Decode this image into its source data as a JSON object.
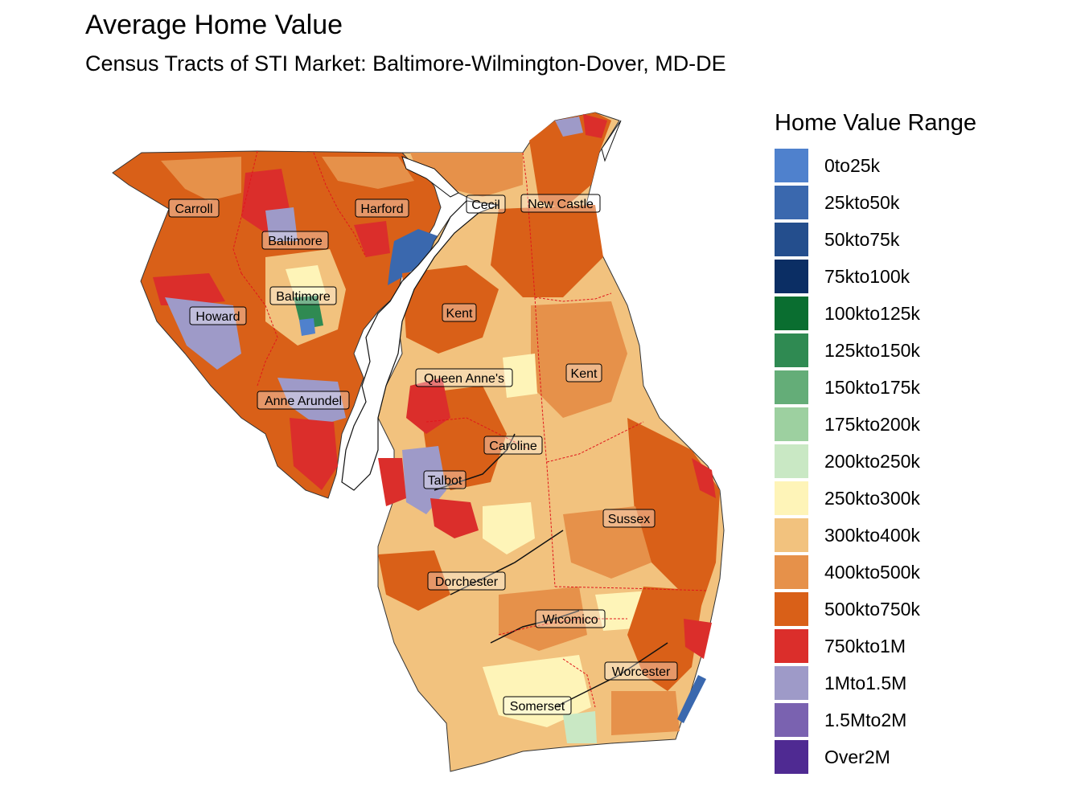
{
  "title": "Average Home Value",
  "subtitle": "Census Tracts of STI Market: Baltimore-Wilmington-Dover, MD-DE",
  "legend": {
    "title": "Home Value Range",
    "items": [
      {
        "label": "0to25k",
        "color": "#4f81cd"
      },
      {
        "label": "25kto50k",
        "color": "#3a68ae"
      },
      {
        "label": "50kto75k",
        "color": "#244e8d"
      },
      {
        "label": "75kto100k",
        "color": "#0b2e64"
      },
      {
        "label": "100kto125k",
        "color": "#0a6e30"
      },
      {
        "label": "125kto150k",
        "color": "#2f8a52"
      },
      {
        "label": "150kto175k",
        "color": "#64ad78"
      },
      {
        "label": "175kto200k",
        "color": "#9dd0a0"
      },
      {
        "label": "200kto250k",
        "color": "#c9e8c4"
      },
      {
        "label": "250kto300k",
        "color": "#fef4b8"
      },
      {
        "label": "300kto400k",
        "color": "#f2c27e"
      },
      {
        "label": "400kto500k",
        "color": "#e6914a"
      },
      {
        "label": "500kto750k",
        "color": "#d96018"
      },
      {
        "label": "750kto1M",
        "color": "#db2e2b"
      },
      {
        "label": "1Mto1.5M",
        "color": "#9e9ac8"
      },
      {
        "label": "1.5Mto2M",
        "color": "#7a62b0"
      },
      {
        "label": "Over2M",
        "color": "#4f2a92"
      }
    ]
  },
  "counties": {
    "carroll": "Carroll",
    "harford": "Harford",
    "cecil": "Cecil",
    "new_castle": "New Castle",
    "baltimore_county": "Baltimore",
    "baltimore_city": "Baltimore",
    "howard": "Howard",
    "kent_md": "Kent",
    "kent_de": "Kent",
    "queen_annes": "Queen Anne's",
    "anne_arundel": "Anne Arundel",
    "caroline": "Caroline",
    "talbot": "Talbot",
    "sussex": "Sussex",
    "dorchester": "Dorchester",
    "wicomico": "Wicomico",
    "worcester": "Worcester",
    "somerset": "Somerset"
  }
}
